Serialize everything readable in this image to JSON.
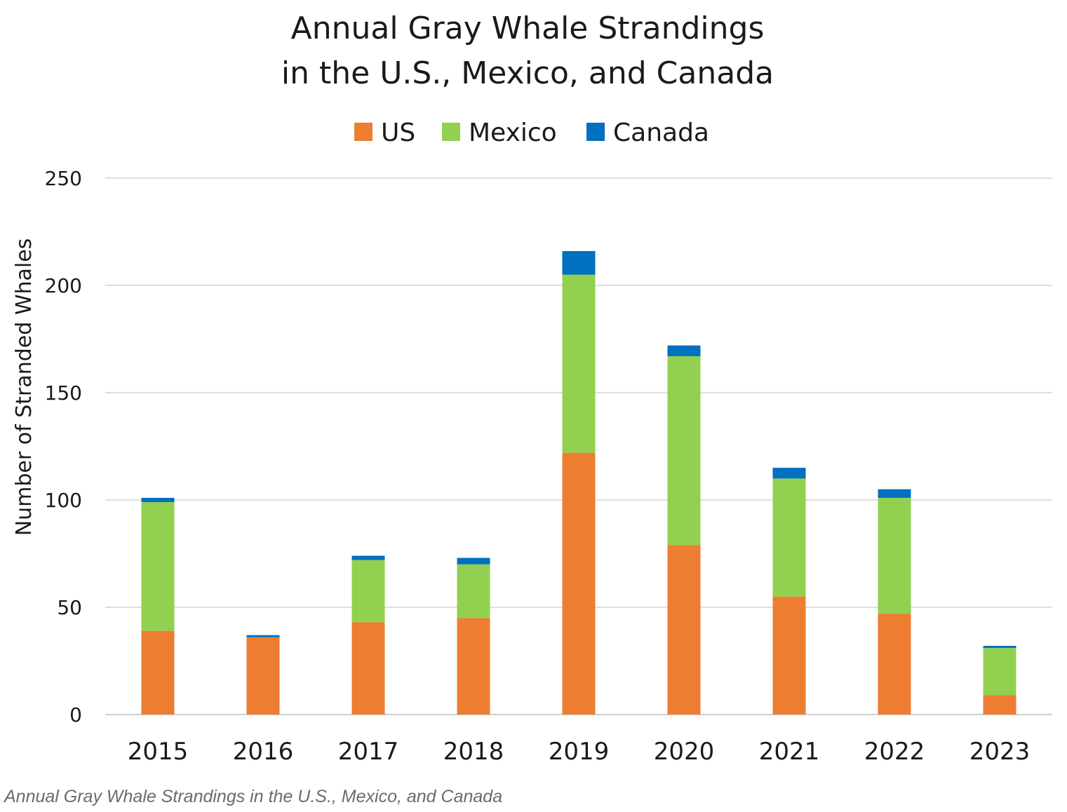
{
  "chart_data": {
    "type": "bar",
    "stacked": true,
    "title": "Annual Gray Whale Strandings in the U.S., Mexico, and Canada",
    "title_lines": [
      "Annual Gray Whale Strandings",
      "in the U.S., Mexico, and Canada"
    ],
    "xlabel": "",
    "ylabel": "Number of Stranded Whales",
    "ylim": [
      0,
      250
    ],
    "yticks": [
      0,
      50,
      100,
      150,
      200,
      250
    ],
    "grid": true,
    "legend_position": "top-center",
    "categories": [
      "2015",
      "2016",
      "2017",
      "2018",
      "2019",
      "2020",
      "2021",
      "2022",
      "2023"
    ],
    "series": [
      {
        "name": "US",
        "color": "#ed7d31",
        "values": [
          39,
          36,
          43,
          45,
          122,
          79,
          55,
          47,
          9
        ]
      },
      {
        "name": "Mexico",
        "color": "#92d050",
        "values": [
          60,
          0,
          29,
          25,
          83,
          88,
          55,
          54,
          22
        ]
      },
      {
        "name": "Canada",
        "color": "#0070c0",
        "values": [
          2,
          1,
          2,
          3,
          11,
          5,
          5,
          4,
          1
        ]
      }
    ]
  },
  "caption": "Annual Gray Whale Strandings in the U.S., Mexico, and Canada"
}
